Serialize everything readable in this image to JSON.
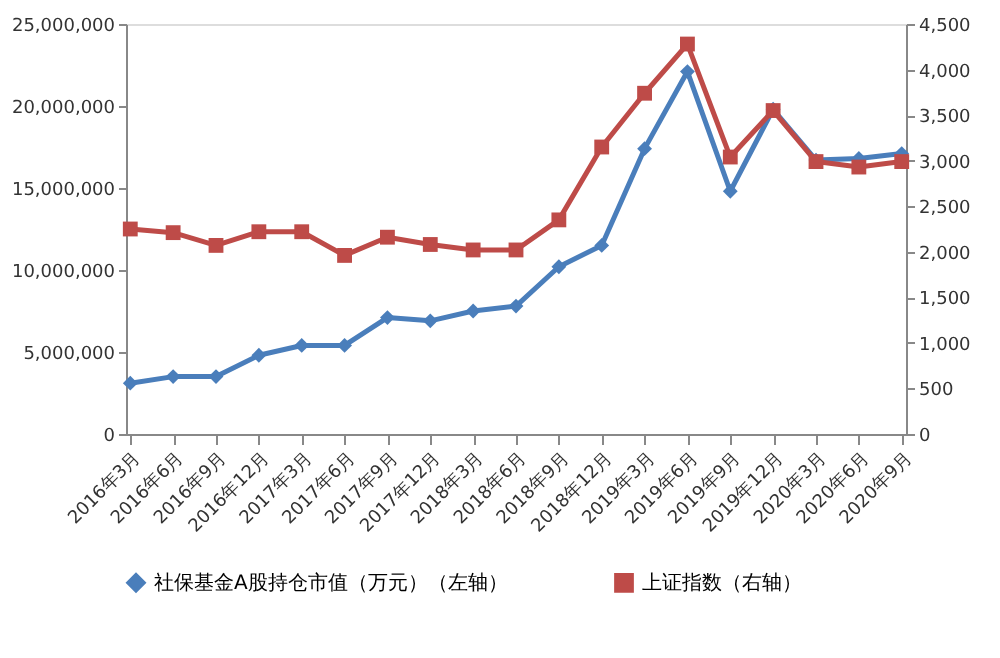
{
  "chart_data": {
    "type": "line",
    "categories": [
      "2016年3月",
      "2016年6月",
      "2016年9月",
      "2016年12月",
      "2017年3月",
      "2017年6月",
      "2017年9月",
      "2017年12月",
      "2018年3月",
      "2018年6月",
      "2018年9月",
      "2018年12月",
      "2019年3月",
      "2019年6月",
      "2019年9月",
      "2019年12月",
      "2020年3月",
      "2020年6月",
      "2020年9月"
    ],
    "series": [
      {
        "name": "社保基金A股持仓市值（万元）（左轴）",
        "color": "#4a7ebb",
        "marker": "diamond",
        "values": [
          3100000,
          3500000,
          3500000,
          4800000,
          5400000,
          5400000,
          7100000,
          6900000,
          7500000,
          7800000,
          10200000,
          11500000,
          17400000,
          22100000,
          14800000,
          19800000,
          16700000,
          16800000,
          17100000
        ]
      },
      {
        "name": "上证指数（右轴）",
        "color": "#be4b48",
        "marker": "square",
        "axis": "y2",
        "values": [
          2250,
          2210,
          2070,
          2220,
          2220,
          1960,
          2160,
          2080,
          2020,
          2020,
          2350,
          3150,
          3740,
          4280,
          3040,
          3550,
          2990,
          2930,
          2990
        ]
      }
    ],
    "ylim": [
      0,
      25000000
    ],
    "yticks": [
      0,
      {
        "value": 5000000,
        "label": "5,000,000"
      },
      {
        "value": 10000000,
        "label": "10,000,000"
      },
      {
        "value": 15000000,
        "label": "15,000,000"
      },
      {
        "value": 20000000,
        "label": "20,000,000"
      },
      {
        "value": 25000000,
        "label": "25,000,000"
      }
    ],
    "y2lim": [
      0,
      4500
    ],
    "y2ticks": [
      0,
      500,
      {
        "value": 1000,
        "label": "1,000"
      },
      {
        "value": 1500,
        "label": "1,500"
      },
      {
        "value": 2000,
        "label": "2,000"
      },
      {
        "value": 2500,
        "label": "2,500"
      },
      {
        "value": 3000,
        "label": "3,000"
      },
      {
        "value": 3500,
        "label": "3,500"
      },
      {
        "value": 4000,
        "label": "4,000"
      },
      {
        "value": 4500,
        "label": "4,500"
      }
    ],
    "grid": false,
    "legend": "bottom"
  }
}
